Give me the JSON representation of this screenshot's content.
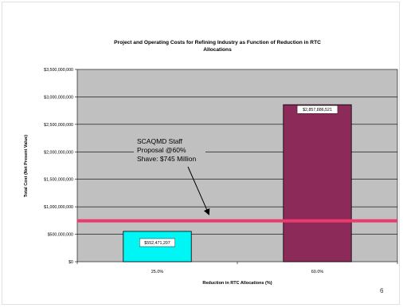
{
  "page": {
    "number": "6"
  },
  "colors": {
    "plot_background": "#c0c0c0",
    "gridline": "#000000",
    "staff_line": "#ea3a6e"
  },
  "chart_data": {
    "type": "bar",
    "title": "Project and Operating Costs for Refining Industry as Function of Reduction in RTC Allocations",
    "title_lines": [
      "Project and Operating Costs for Refining Industry as Function of Reduction in RTC",
      "Allocations"
    ],
    "xlabel": "Reduction in RTC Allocations (%)",
    "ylabel": "Total Cost (Net Present Value)",
    "categories": [
      "25.0%",
      "60.0%"
    ],
    "values": [
      552471207,
      2857886521
    ],
    "data_labels": [
      "$552,471,207",
      "$2,857,886,521"
    ],
    "bar_colors": [
      "#00f5f5",
      "#8c2b5a"
    ],
    "ylim": [
      0,
      3500000000
    ],
    "yticks": [
      0,
      500000000,
      1000000000,
      1500000000,
      2000000000,
      2500000000,
      3000000000,
      3500000000
    ],
    "ytick_labels": [
      "$0",
      "$500,000,000",
      "$1,000,000,000",
      "$1,500,000,000",
      "$2,000,000,000",
      "$2,500,000,000",
      "$3,000,000,000",
      "$3,500,000,000"
    ],
    "grid": true,
    "reference_line": {
      "value": 745000000,
      "color": "#ea3a6e"
    },
    "annotation": {
      "lines": [
        "SCAQMD Staff",
        "Proposal @60%",
        "Shave: $745 Million"
      ]
    }
  }
}
